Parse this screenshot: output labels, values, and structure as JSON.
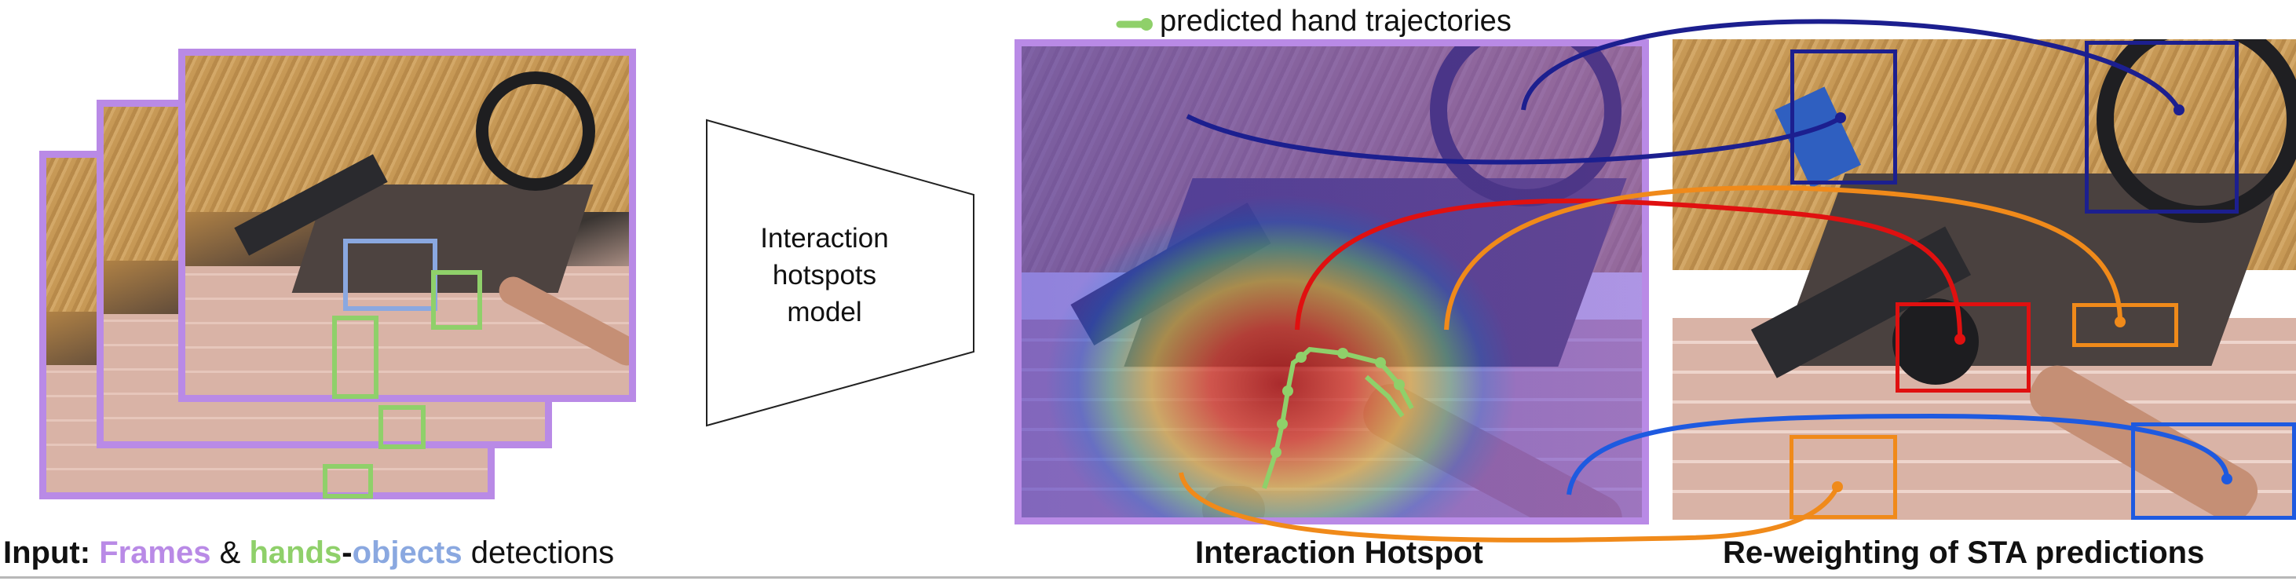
{
  "model_label": "Interaction hotspots model",
  "legend": {
    "text": "predicted hand trajectories",
    "color": "#8fd06a"
  },
  "captions": {
    "input_prefix": "Input:",
    "frames": "Frames",
    "amp": "&",
    "hands": "hands",
    "dash": "-",
    "objects": "objects",
    "detections": "detections",
    "hotspot": "Interaction Hotspot",
    "reweight": "Re-weighting of STA predictions"
  },
  "colors": {
    "frames": "#b98ae6",
    "hands": "#8fd06a",
    "objects": "#8aa8e0",
    "navy": "#1c1f8f",
    "red": "#e01010",
    "orange": "#f08a1a",
    "blue": "#1e5ae0"
  }
}
